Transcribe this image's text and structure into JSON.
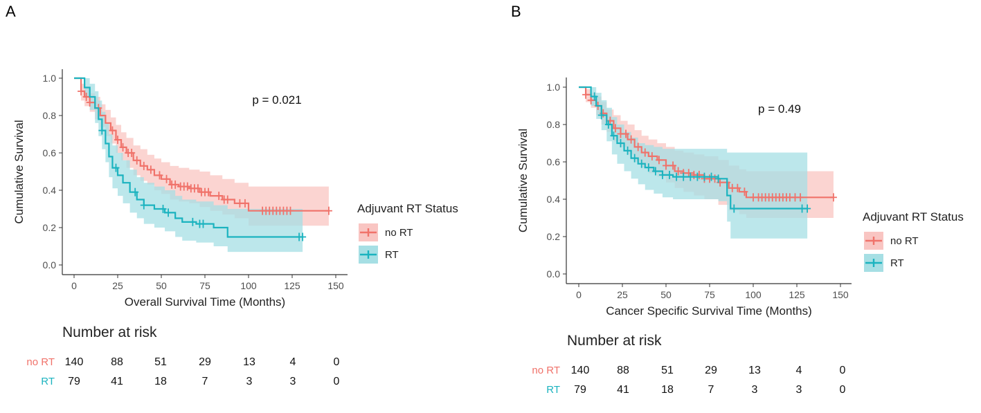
{
  "colors": {
    "no_rt": "#f0726a",
    "rt": "#1bb3bf",
    "no_rt_band": "#f9c5c2",
    "rt_band": "#a6dfe4",
    "axis": "#333333",
    "tick_text": "#4d4d4d"
  },
  "chart_data": [
    {
      "type": "line",
      "panel_label": "A",
      "title": "",
      "xlabel": "Overall Survival Time (Months)",
      "ylabel": "Cumulative Survival",
      "xlim": [
        0,
        150
      ],
      "ylim": [
        0,
        1
      ],
      "x_ticks": [
        0,
        25,
        50,
        75,
        100,
        125,
        150
      ],
      "y_ticks": [
        0.0,
        0.2,
        0.4,
        0.6,
        0.8,
        1.0
      ],
      "x_tick_labels": [
        "0",
        "25",
        "50",
        "75",
        "100",
        "125",
        "150"
      ],
      "y_tick_labels": [
        "0.0",
        "0.2",
        "0.4",
        "0.6",
        "0.8",
        "1.0"
      ],
      "annotation": "p = 0.021",
      "legend": {
        "title": "Adjuvant RT Status",
        "placement": "right",
        "entries": [
          "no RT",
          "RT"
        ]
      },
      "series": [
        {
          "name": "no RT",
          "x": [
            0,
            4,
            6,
            9,
            12,
            15,
            18,
            21,
            24,
            27,
            30,
            34,
            38,
            42,
            46,
            50,
            55,
            60,
            66,
            72,
            78,
            85,
            92,
            100,
            146
          ],
          "y": [
            1.0,
            0.93,
            0.9,
            0.87,
            0.84,
            0.8,
            0.76,
            0.72,
            0.67,
            0.63,
            0.6,
            0.56,
            0.53,
            0.51,
            0.48,
            0.46,
            0.43,
            0.42,
            0.41,
            0.39,
            0.37,
            0.35,
            0.33,
            0.29,
            0.29
          ],
          "upper": [
            1.0,
            0.97,
            0.95,
            0.92,
            0.9,
            0.86,
            0.83,
            0.79,
            0.75,
            0.71,
            0.68,
            0.64,
            0.62,
            0.59,
            0.57,
            0.55,
            0.53,
            0.52,
            0.51,
            0.5,
            0.48,
            0.46,
            0.44,
            0.42,
            0.42
          ],
          "lower": [
            1.0,
            0.88,
            0.85,
            0.82,
            0.78,
            0.74,
            0.69,
            0.65,
            0.6,
            0.56,
            0.52,
            0.48,
            0.45,
            0.43,
            0.4,
            0.38,
            0.35,
            0.34,
            0.33,
            0.31,
            0.29,
            0.27,
            0.25,
            0.21,
            0.21
          ],
          "censored_x": [
            4,
            7,
            9,
            14,
            22,
            25,
            28,
            31,
            33,
            36,
            40,
            44,
            49,
            53,
            56,
            58,
            61,
            63,
            65,
            67,
            69,
            71,
            73,
            75,
            77,
            83,
            86,
            88,
            95,
            98,
            108,
            110,
            112,
            114,
            116,
            118,
            120,
            122,
            124,
            146
          ]
        },
        {
          "name": "RT",
          "x": [
            0,
            6,
            9,
            12,
            14,
            16,
            18,
            20,
            22,
            25,
            28,
            32,
            36,
            40,
            46,
            52,
            58,
            62,
            70,
            80,
            88,
            131
          ],
          "y": [
            1.0,
            0.95,
            0.9,
            0.84,
            0.78,
            0.72,
            0.65,
            0.58,
            0.52,
            0.48,
            0.44,
            0.39,
            0.35,
            0.32,
            0.3,
            0.28,
            0.25,
            0.23,
            0.22,
            0.2,
            0.15,
            0.15
          ],
          "upper": [
            1.0,
            1.0,
            0.97,
            0.93,
            0.88,
            0.82,
            0.76,
            0.7,
            0.64,
            0.6,
            0.56,
            0.51,
            0.47,
            0.44,
            0.42,
            0.4,
            0.37,
            0.35,
            0.34,
            0.32,
            0.3,
            0.3
          ],
          "lower": [
            1.0,
            0.9,
            0.83,
            0.76,
            0.69,
            0.62,
            0.55,
            0.47,
            0.41,
            0.37,
            0.33,
            0.28,
            0.25,
            0.22,
            0.2,
            0.18,
            0.15,
            0.13,
            0.12,
            0.1,
            0.07,
            0.07
          ],
          "censored_x": [
            16,
            24,
            35,
            40,
            51,
            54,
            68,
            72,
            74,
            129,
            131
          ]
        }
      ],
      "risk_table": {
        "title": "Number at risk",
        "rows": [
          {
            "label": "no RT",
            "values": [
              "140",
              "88",
              "51",
              "29",
              "13",
              "4",
              "0"
            ]
          },
          {
            "label": "RT",
            "values": [
              "79",
              "41",
              "18",
              "7",
              "3",
              "3",
              "0"
            ]
          }
        ]
      }
    },
    {
      "type": "line",
      "panel_label": "B",
      "title": "",
      "xlabel": "Cancer Specific Survival Time (Months)",
      "ylabel": "Cumulative Survival",
      "xlim": [
        0,
        150
      ],
      "ylim": [
        0,
        1
      ],
      "x_ticks": [
        0,
        25,
        50,
        75,
        100,
        125,
        150
      ],
      "y_ticks": [
        0.0,
        0.2,
        0.4,
        0.6,
        0.8,
        1.0
      ],
      "x_tick_labels": [
        "0",
        "25",
        "50",
        "75",
        "100",
        "125",
        "150"
      ],
      "y_tick_labels": [
        "0.0",
        "0.2",
        "0.4",
        "0.6",
        "0.8",
        "1.0"
      ],
      "annotation": "p = 0.49",
      "legend": {
        "title": "Adjuvant RT Status",
        "placement": "right",
        "entries": [
          "no RT",
          "RT"
        ]
      },
      "series": [
        {
          "name": "no RT",
          "x": [
            0,
            4,
            7,
            10,
            13,
            16,
            20,
            24,
            28,
            32,
            36,
            40,
            45,
            50,
            55,
            60,
            66,
            72,
            80,
            86,
            92,
            96,
            146
          ],
          "y": [
            1.0,
            0.96,
            0.93,
            0.9,
            0.86,
            0.82,
            0.78,
            0.75,
            0.72,
            0.68,
            0.65,
            0.63,
            0.61,
            0.58,
            0.55,
            0.54,
            0.53,
            0.51,
            0.49,
            0.46,
            0.44,
            0.41,
            0.41
          ],
          "upper": [
            1.0,
            0.99,
            0.97,
            0.95,
            0.92,
            0.88,
            0.85,
            0.82,
            0.8,
            0.77,
            0.74,
            0.72,
            0.7,
            0.68,
            0.66,
            0.65,
            0.64,
            0.63,
            0.61,
            0.58,
            0.56,
            0.55,
            0.55
          ],
          "lower": [
            1.0,
            0.92,
            0.89,
            0.85,
            0.8,
            0.76,
            0.71,
            0.68,
            0.64,
            0.6,
            0.57,
            0.54,
            0.52,
            0.49,
            0.46,
            0.44,
            0.42,
            0.4,
            0.37,
            0.34,
            0.32,
            0.3,
            0.3
          ],
          "censored_x": [
            4,
            7,
            11,
            14,
            18,
            21,
            24,
            27,
            30,
            34,
            38,
            42,
            46,
            50,
            54,
            57,
            60,
            63,
            66,
            69,
            72,
            75,
            78,
            81,
            85,
            88,
            91,
            95,
            100,
            103,
            105,
            107,
            109,
            111,
            113,
            115,
            117,
            119,
            121,
            124,
            127,
            146
          ]
        },
        {
          "name": "RT",
          "x": [
            0,
            7,
            10,
            13,
            16,
            19,
            22,
            26,
            30,
            34,
            38,
            43,
            48,
            54,
            60,
            70,
            80,
            85,
            87,
            131
          ],
          "y": [
            1.0,
            0.95,
            0.9,
            0.85,
            0.8,
            0.74,
            0.7,
            0.66,
            0.62,
            0.59,
            0.57,
            0.55,
            0.53,
            0.52,
            0.52,
            0.52,
            0.51,
            0.42,
            0.35,
            0.35
          ],
          "upper": [
            1.0,
            1.0,
            0.97,
            0.93,
            0.89,
            0.84,
            0.8,
            0.76,
            0.73,
            0.7,
            0.69,
            0.68,
            0.67,
            0.67,
            0.67,
            0.67,
            0.67,
            0.65,
            0.65,
            0.65
          ],
          "lower": [
            1.0,
            0.9,
            0.83,
            0.77,
            0.71,
            0.64,
            0.59,
            0.55,
            0.51,
            0.48,
            0.45,
            0.43,
            0.41,
            0.4,
            0.4,
            0.4,
            0.39,
            0.28,
            0.19,
            0.19
          ],
          "censored_x": [
            9,
            13,
            17,
            20,
            24,
            28,
            32,
            36,
            40,
            44,
            48,
            52,
            56,
            60,
            64,
            68,
            72,
            76,
            80,
            89,
            128,
            131
          ]
        }
      ],
      "risk_table": {
        "title": "Number at risk",
        "rows": [
          {
            "label": "no RT",
            "values": [
              "140",
              "88",
              "51",
              "29",
              "13",
              "4",
              "0"
            ]
          },
          {
            "label": "RT",
            "values": [
              "79",
              "41",
              "18",
              "7",
              "3",
              "3",
              "0"
            ]
          }
        ]
      }
    }
  ]
}
